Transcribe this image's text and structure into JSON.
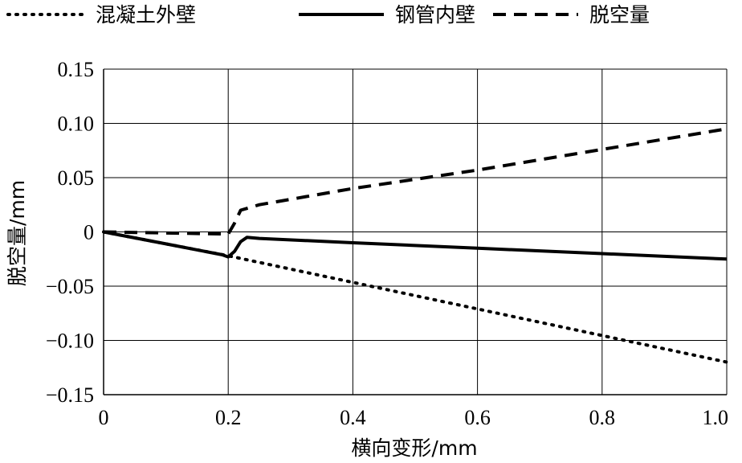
{
  "chart_data": {
    "type": "line",
    "xlabel": "横向变形/mm",
    "ylabel": "脱空量/mm",
    "xlim": [
      0,
      1.0
    ],
    "ylim": [
      -0.15,
      0.15
    ],
    "x_ticks": [
      "0",
      "0.2",
      "0.4",
      "0.6",
      "0.8",
      "1.0"
    ],
    "y_ticks": [
      "0.15",
      "0.10",
      "0.05",
      "0",
      "−0.05",
      "−0.10",
      "−0.15"
    ],
    "grid": true,
    "legend_position": "top",
    "series": [
      {
        "name": "混凝土外壁",
        "style": "dotted",
        "points": [
          [
            0,
            0
          ],
          [
            0.2,
            -0.022
          ],
          [
            1.0,
            -0.12
          ]
        ]
      },
      {
        "name": "钢管内壁",
        "style": "solid",
        "points": [
          [
            0,
            0
          ],
          [
            0.1,
            -0.011
          ],
          [
            0.19,
            -0.021
          ],
          [
            0.2,
            -0.023
          ],
          [
            0.21,
            -0.018
          ],
          [
            0.22,
            -0.009
          ],
          [
            0.23,
            -0.005
          ],
          [
            0.25,
            -0.006
          ],
          [
            0.4,
            -0.01
          ],
          [
            0.6,
            -0.015
          ],
          [
            0.8,
            -0.02
          ],
          [
            1.0,
            -0.025
          ]
        ]
      },
      {
        "name": "脱空量",
        "style": "dashed",
        "points": [
          [
            0,
            0
          ],
          [
            0.2,
            -0.002
          ],
          [
            0.21,
            0.008
          ],
          [
            0.22,
            0.02
          ],
          [
            0.25,
            0.025
          ],
          [
            0.4,
            0.04
          ],
          [
            0.6,
            0.057
          ],
          [
            0.8,
            0.076
          ],
          [
            1.0,
            0.095
          ]
        ]
      }
    ],
    "colors": {
      "line": "#000000",
      "grid": "#000000",
      "background": "#ffffff"
    }
  }
}
